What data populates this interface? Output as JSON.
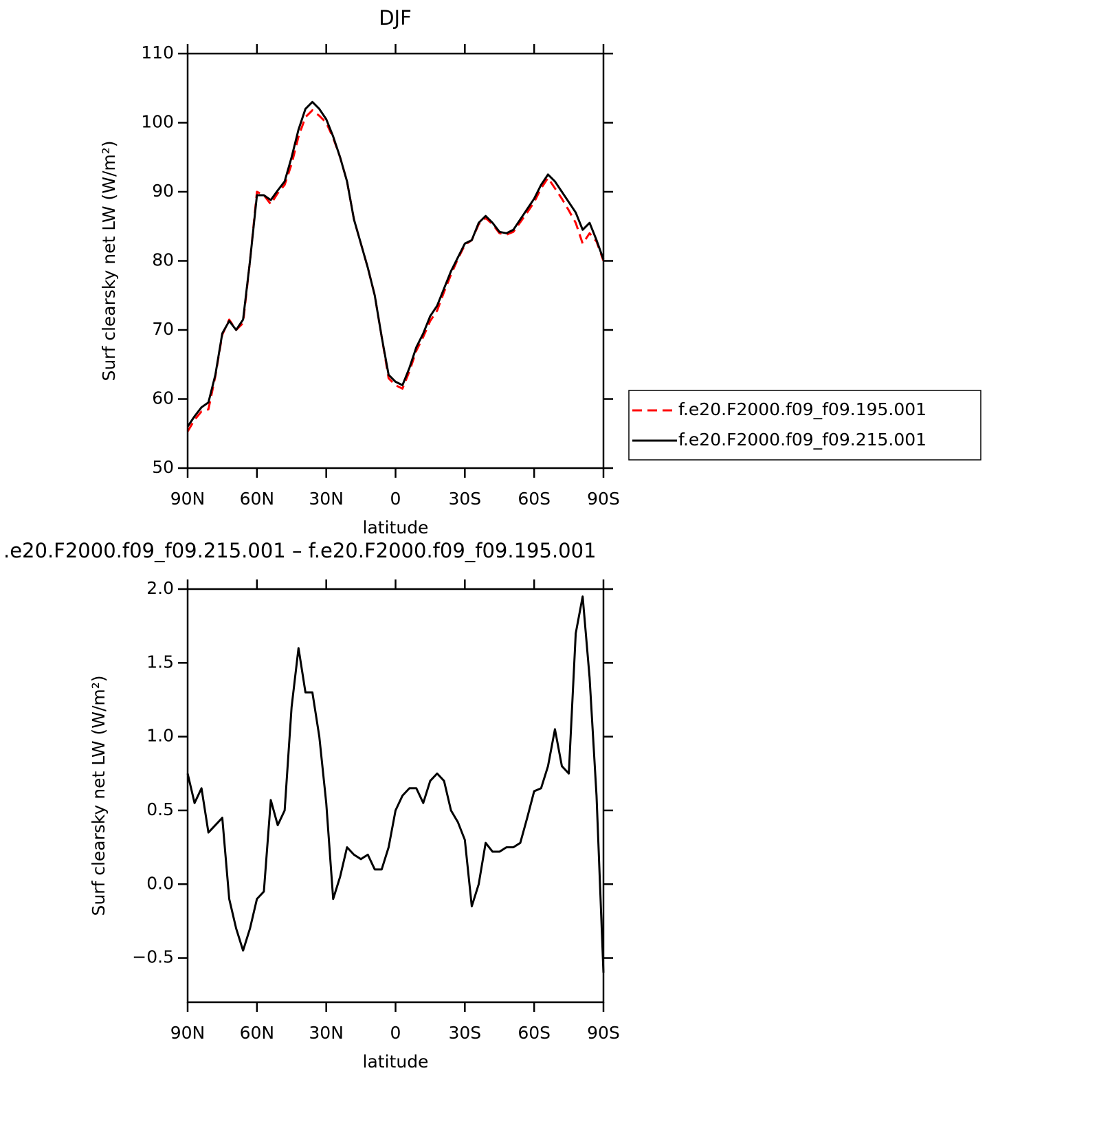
{
  "chart_data": [
    {
      "type": "line",
      "title": "DJF",
      "xlabel": "latitude",
      "ylabel": "Surf clearsky net LW (W/m²)",
      "x": [
        90,
        87,
        84,
        81,
        78,
        75,
        72,
        69,
        66,
        63,
        60,
        57,
        54,
        51,
        48,
        45,
        42,
        39,
        36,
        33,
        30,
        27,
        24,
        21,
        18,
        15,
        12,
        9,
        6,
        3,
        0,
        -3,
        -6,
        -9,
        -12,
        -15,
        -18,
        -21,
        -24,
        -27,
        -30,
        -33,
        -36,
        -39,
        -42,
        -45,
        -48,
        -51,
        -54,
        -57,
        -60,
        -63,
        -66,
        -69,
        -72,
        -75,
        -78,
        -81,
        -84,
        -87,
        -90
      ],
      "xlim": [
        90,
        -90
      ],
      "xticks": [
        {
          "value": 90,
          "label": "90N"
        },
        {
          "value": 60,
          "label": "60N"
        },
        {
          "value": 30,
          "label": "30N"
        },
        0,
        {
          "value": -30,
          "label": "30S"
        },
        {
          "value": -60,
          "label": "60S"
        },
        {
          "value": -90,
          "label": "90S"
        }
      ],
      "ylim": [
        50,
        110
      ],
      "yticks": [
        50,
        60,
        70,
        80,
        90,
        100,
        110
      ],
      "legend": "right",
      "series": [
        {
          "name": "f.e20.F2000.f09_f09.195.001",
          "color": "#ff0000",
          "line_style": "dashed",
          "values": [
            55.3,
            57,
            58.2,
            58.5,
            63.3,
            69.3,
            71.5,
            70,
            71,
            80,
            90,
            89.5,
            88.2,
            89.8,
            91,
            94,
            98,
            100.8,
            101.8,
            101,
            100,
            97.8,
            95,
            91.5,
            86,
            82.5,
            79,
            75,
            69,
            63,
            62,
            61.5,
            64,
            67,
            69,
            71.3,
            72.8,
            75.5,
            78,
            80.3,
            82.3,
            83,
            85.3,
            86.2,
            85.3,
            84,
            83.8,
            84.2,
            85.6,
            87,
            88.5,
            90.5,
            92,
            90.5,
            89,
            87.3,
            85.5,
            82.5,
            84,
            82.8,
            80
          ]
        },
        {
          "name": "f.e20.F2000.f09_f09.215.001",
          "color": "#000000",
          "line_style": "solid",
          "values": [
            56,
            57.5,
            58.8,
            59.5,
            63.5,
            69.5,
            71.3,
            70,
            71.5,
            80,
            89.5,
            89.5,
            88.8,
            90.2,
            91.5,
            95,
            99,
            102,
            103,
            102,
            100.5,
            98,
            95,
            91.5,
            86,
            82.5,
            79,
            75,
            69,
            63.5,
            62.5,
            62,
            64.5,
            67.5,
            69.5,
            72,
            73.5,
            76,
            78.5,
            80.5,
            82.5,
            83,
            85.5,
            86.5,
            85.5,
            84.2,
            84,
            84.5,
            86,
            87.5,
            89,
            91,
            92.5,
            91.5,
            90,
            88.5,
            87,
            84.5,
            85.5,
            83,
            80.2
          ]
        }
      ]
    },
    {
      "type": "line",
      "title": ".e20.F2000.f09_f09.215.001 – f.e20.F2000.f09_f09.195.001",
      "xlabel": "latitude",
      "ylabel": "Surf clearsky net LW (W/m²)",
      "x": [
        90,
        87,
        84,
        81,
        78,
        75,
        72,
        69,
        66,
        63,
        60,
        57,
        54,
        51,
        48,
        45,
        42,
        39,
        36,
        33,
        30,
        27,
        24,
        21,
        18,
        15,
        12,
        9,
        6,
        3,
        0,
        -3,
        -6,
        -9,
        -12,
        -15,
        -18,
        -21,
        -24,
        -27,
        -30,
        -33,
        -36,
        -39,
        -42,
        -45,
        -48,
        -51,
        -54,
        -57,
        -60,
        -63,
        -66,
        -69,
        -72,
        -75,
        -78,
        -81,
        -84,
        -87,
        -90
      ],
      "xlim": [
        90,
        -90
      ],
      "xticks": [
        {
          "value": 90,
          "label": "90N"
        },
        {
          "value": 60,
          "label": "60N"
        },
        {
          "value": 30,
          "label": "30N"
        },
        0,
        {
          "value": -30,
          "label": "30S"
        },
        {
          "value": -60,
          "label": "60S"
        },
        {
          "value": -90,
          "label": "90S"
        }
      ],
      "ylim": [
        -0.8,
        2.0
      ],
      "yticks": [
        {
          "value": -0.5,
          "label": "−0.5"
        },
        {
          "value": 0,
          "label": "0.0"
        },
        0.5,
        {
          "value": 1,
          "label": "1.0"
        },
        1.5,
        {
          "value": 2,
          "label": "2.0"
        }
      ],
      "series": [
        {
          "color": "#000000",
          "line_style": "solid",
          "values": [
            0.75,
            0.55,
            0.65,
            0.35,
            0.4,
            0.45,
            -0.1,
            -0.3,
            -0.45,
            -0.3,
            -0.1,
            -0.05,
            0.57,
            0.4,
            0.5,
            1.2,
            1.6,
            1.3,
            1.3,
            1.0,
            0.55,
            -0.1,
            0.05,
            0.25,
            0.2,
            0.17,
            0.2,
            0.1,
            0.1,
            0.25,
            0.5,
            0.6,
            0.65,
            0.65,
            0.55,
            0.7,
            0.75,
            0.7,
            0.5,
            0.42,
            0.3,
            -0.15,
            0.0,
            0.28,
            0.22,
            0.22,
            0.25,
            0.25,
            0.28,
            0.45,
            0.63,
            0.65,
            0.8,
            1.05,
            0.8,
            0.75,
            1.7,
            1.95,
            1.4,
            0.6,
            -0.6
          ]
        }
      ]
    }
  ]
}
